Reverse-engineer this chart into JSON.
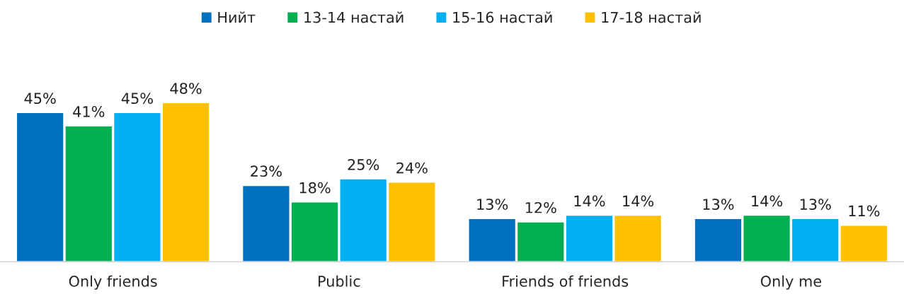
{
  "chart_data": {
    "type": "bar",
    "categories": [
      "Only friends",
      "Public",
      "Friends of friends",
      "Only me"
    ],
    "series": [
      {
        "name": "Нийт",
        "color": "#0070c0",
        "values": [
          45,
          23,
          13,
          13
        ],
        "value_labels": [
          "45%",
          "23%",
          "13%",
          "13%"
        ]
      },
      {
        "name": "13-14 настай",
        "color": "#00b050",
        "values": [
          41,
          18,
          12,
          14
        ],
        "value_labels": [
          "41%",
          "18%",
          "12%",
          "14%"
        ]
      },
      {
        "name": "15-16 настай",
        "color": "#00b0f0",
        "values": [
          45,
          25,
          14,
          13
        ],
        "value_labels": [
          "45%",
          "25%",
          "14%",
          "13%"
        ]
      },
      {
        "name": "17-18 настай",
        "color": "#ffc000",
        "values": [
          48,
          24,
          14,
          11
        ],
        "value_labels": [
          "48%",
          "24%",
          "14%",
          "11%"
        ]
      }
    ],
    "legend": "top",
    "grid": false
  }
}
